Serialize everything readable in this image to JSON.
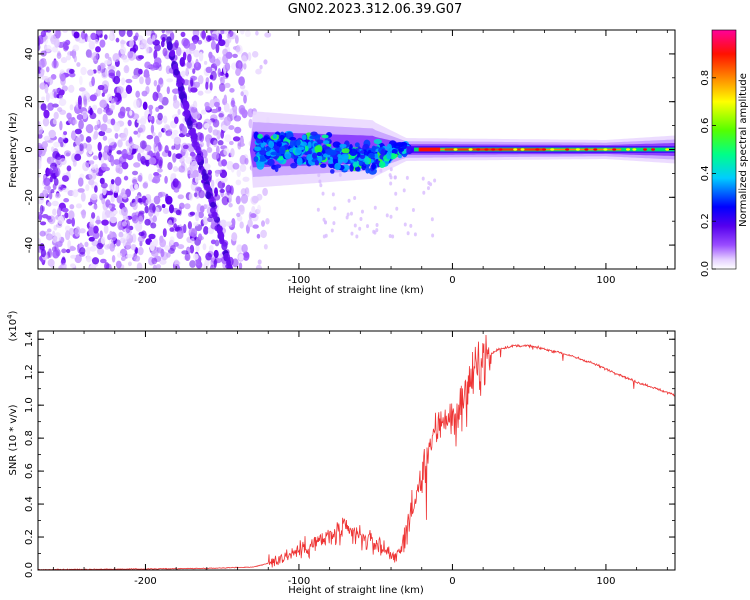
{
  "title": "GN02.2023.312.06.39.G07",
  "chart_data": [
    {
      "type": "heatmap",
      "title": "GN02.2023.312.06.39.G07",
      "xlabel": "Height of straight line (km)",
      "ylabel": "Frequency (Hz)",
      "xlim": [
        -270,
        145
      ],
      "ylim": [
        -50,
        50
      ],
      "x_ticks": [
        -200,
        -100,
        0,
        100
      ],
      "y_ticks": [
        -40,
        -20,
        0,
        20,
        40
      ],
      "colorbar": {
        "label": "Normalized spectral amplitude",
        "range": [
          0.0,
          1.0
        ],
        "ticks": [
          0.0,
          0.2,
          0.4,
          0.6,
          0.8
        ],
        "colors": [
          "#ffffff",
          "#e0c0ff",
          "#9a4dff",
          "#5500ee",
          "#0000ff",
          "#00ccff",
          "#00ff66",
          "#66ff00",
          "#ffff00",
          "#ff8800",
          "#ff0000",
          "#ff0099"
        ]
      },
      "features": {
        "noise_region_x": [
          -270,
          -130
        ],
        "signal_center_freq": 0,
        "streak": {
          "x_start": -185,
          "freq_start": 45,
          "x_end": -145,
          "freq_end": -50
        }
      }
    },
    {
      "type": "line",
      "xlabel": "Height of straight line (km)",
      "ylabel": "SNR (10 * v/v)",
      "y_multiplier": "(x10^4)",
      "xlim": [
        -270,
        145
      ],
      "ylim": [
        0,
        1.45
      ],
      "x_ticks": [
        -200,
        -100,
        0,
        100
      ],
      "y_ticks": [
        0.0,
        0.2,
        0.4,
        0.6,
        0.8,
        1.0,
        1.2,
        1.4
      ],
      "line_color": "#ee3333",
      "series": [
        {
          "name": "SNR",
          "x": [
            -270,
            -240,
            -200,
            -160,
            -130,
            -120,
            -110,
            -100,
            -90,
            -80,
            -70,
            -60,
            -50,
            -40,
            -35,
            -30,
            -25,
            -20,
            -15,
            -10,
            -5,
            0,
            5,
            10,
            15,
            20,
            30,
            40,
            50,
            60,
            70,
            80,
            90,
            100,
            110,
            120,
            130,
            145
          ],
          "values": [
            0.002,
            0.004,
            0.006,
            0.01,
            0.018,
            0.04,
            0.08,
            0.12,
            0.16,
            0.2,
            0.24,
            0.2,
            0.16,
            0.1,
            0.08,
            0.25,
            0.4,
            0.55,
            0.75,
            0.85,
            0.95,
            0.9,
            1.0,
            1.1,
            1.2,
            1.28,
            1.34,
            1.36,
            1.36,
            1.34,
            1.32,
            1.29,
            1.26,
            1.22,
            1.18,
            1.14,
            1.11,
            1.06
          ]
        }
      ]
    }
  ],
  "axis": {
    "x_tick_labels": [
      "-200",
      "-100",
      "0",
      "100"
    ],
    "top_y_tick_labels": [
      "-40",
      "-20",
      "0",
      "20",
      "40"
    ],
    "bottom_y_tick_labels": [
      "0.0",
      "0.2",
      "0.4",
      "0.6",
      "0.8",
      "1.0",
      "1.2",
      "1.4"
    ],
    "colorbar_tick_labels": [
      "0.0",
      "0.2",
      "0.4",
      "0.6",
      "0.8"
    ],
    "multiplier_prefix": "(x10",
    "multiplier_exp": "4",
    "multiplier_suffix": ")"
  }
}
